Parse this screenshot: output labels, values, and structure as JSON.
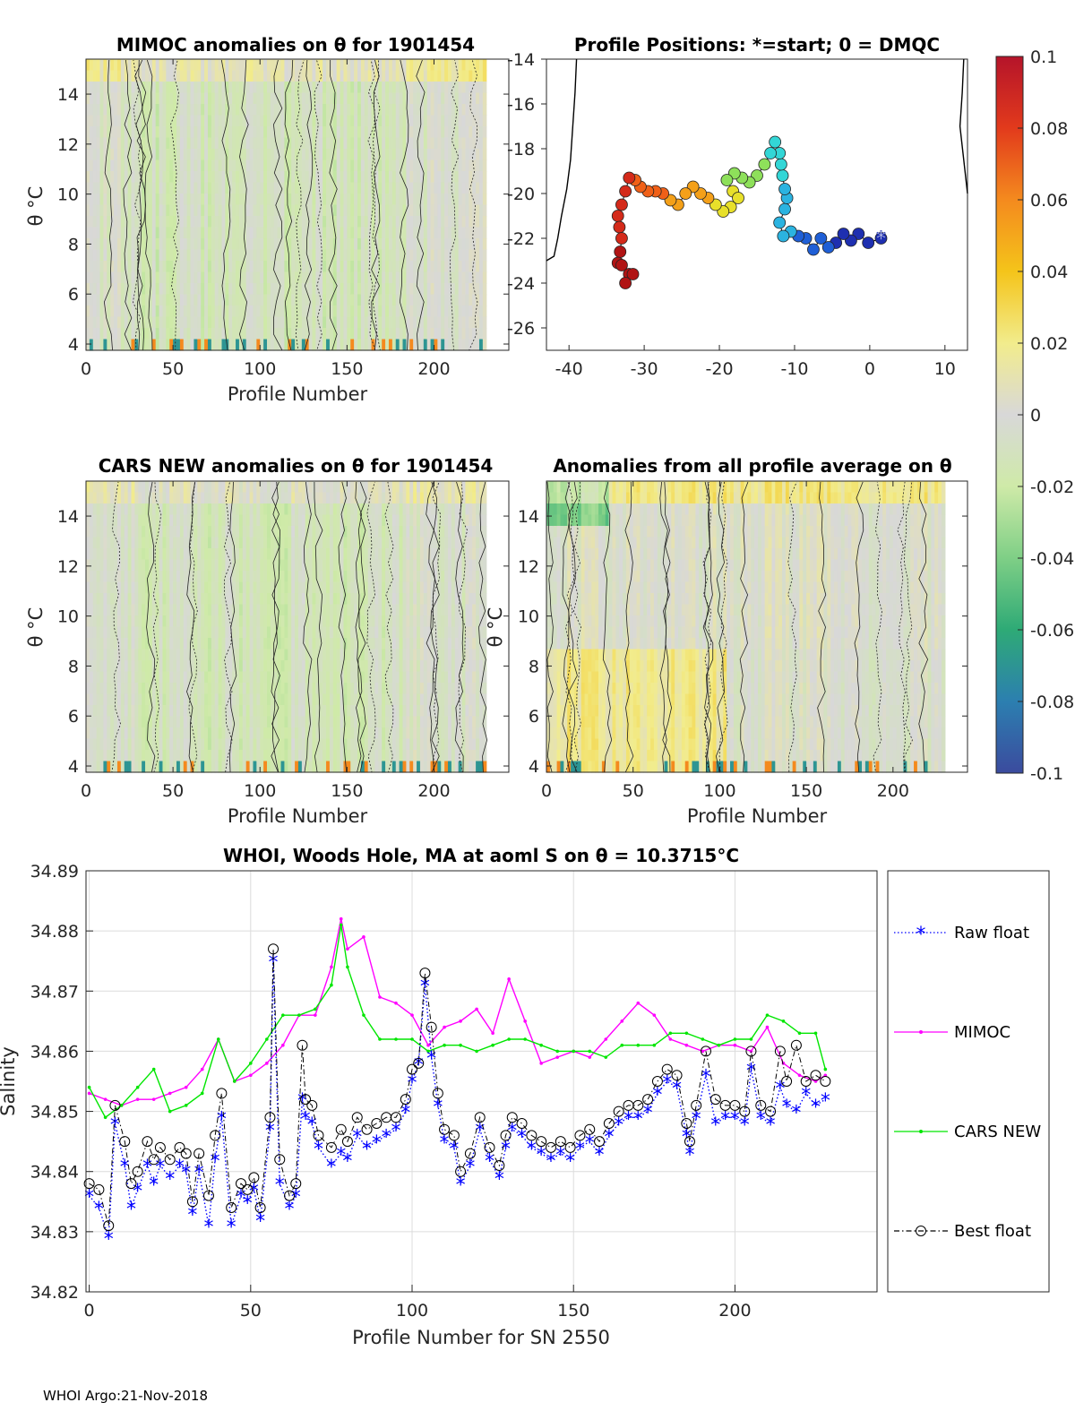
{
  "footer": "WHOI Argo:21-Nov-2018",
  "colorbar": {
    "ticks": [
      "0.1",
      "0.08",
      "0.06",
      "0.04",
      "0.02",
      "0",
      "-0.02",
      "-0.04",
      "-0.06",
      "-0.08",
      "-0.1"
    ],
    "stops": [
      "#b5142a",
      "#e23a1c",
      "#f48a1e",
      "#f4c41a",
      "#f2ec8c",
      "#d8d8d8",
      "#cfeaa8",
      "#7fcf86",
      "#2eaa76",
      "#2c7fb0",
      "#3b4b9e"
    ]
  },
  "chart_data": [
    {
      "type": "heatmap",
      "title": "MIMOC anomalies on θ  for 1901454",
      "xlabel": "Profile Number",
      "ylabel": "θ °C",
      "xticks": [
        "0",
        "50",
        "100",
        "150",
        "200"
      ],
      "yticks": [
        "4",
        "6",
        "8",
        "10",
        "12",
        "14"
      ],
      "xlim": [
        0,
        243
      ],
      "ylim": [
        3.75,
        15.4
      ],
      "anomaly_range": [
        -0.1,
        0.1
      ]
    },
    {
      "type": "scatter",
      "title": "Profile Positions: *=start; 0 = DMQC",
      "xticks": [
        "-40",
        "-30",
        "-20",
        "-10",
        "0",
        "10"
      ],
      "yticks": [
        "-14",
        "-16",
        "-18",
        "-20",
        "-22",
        "-24",
        "-26"
      ],
      "xlim": [
        -43,
        13
      ],
      "ylim": [
        -27,
        -14
      ],
      "track": [
        [
          1.5,
          -22.0
        ],
        [
          -0.2,
          -22.2
        ],
        [
          -1.5,
          -21.8
        ],
        [
          -2.5,
          -22.1
        ],
        [
          -3.5,
          -21.8
        ],
        [
          -4.5,
          -22.2
        ],
        [
          -5.5,
          -22.4
        ],
        [
          -6.5,
          -22.0
        ],
        [
          -7.5,
          -22.5
        ],
        [
          -8.5,
          -22.0
        ],
        [
          -9.5,
          -21.9
        ],
        [
          -10.5,
          -21.7
        ],
        [
          -11.5,
          -21.9
        ],
        [
          -12.0,
          -21.3
        ],
        [
          -11.3,
          -20.7
        ],
        [
          -11.0,
          -20.2
        ],
        [
          -11.3,
          -19.8
        ],
        [
          -11.6,
          -19.2
        ],
        [
          -11.8,
          -18.7
        ],
        [
          -12.0,
          -18.2
        ],
        [
          -12.6,
          -17.7
        ],
        [
          -13.2,
          -18.2
        ],
        [
          -14.0,
          -18.7
        ],
        [
          -15.0,
          -19.2
        ],
        [
          -16.0,
          -19.5
        ],
        [
          -17.0,
          -19.3
        ],
        [
          -18.0,
          -19.1
        ],
        [
          -19.0,
          -19.4
        ],
        [
          -18.2,
          -19.9
        ],
        [
          -17.5,
          -20.2
        ],
        [
          -18.5,
          -20.6
        ],
        [
          -19.5,
          -20.8
        ],
        [
          -20.5,
          -20.5
        ],
        [
          -21.5,
          -20.2
        ],
        [
          -22.5,
          -20.0
        ],
        [
          -23.5,
          -19.7
        ],
        [
          -24.5,
          -20.0
        ],
        [
          -25.5,
          -20.5
        ],
        [
          -26.5,
          -20.3
        ],
        [
          -27.5,
          -20.0
        ],
        [
          -28.5,
          -19.9
        ],
        [
          -29.5,
          -19.9
        ],
        [
          -30.5,
          -19.7
        ],
        [
          -31.2,
          -19.4
        ],
        [
          -32.0,
          -19.3
        ],
        [
          -32.5,
          -19.9
        ],
        [
          -33.0,
          -20.5
        ],
        [
          -33.5,
          -21.0
        ],
        [
          -33.3,
          -21.5
        ],
        [
          -33.0,
          -22.0
        ],
        [
          -33.2,
          -22.6
        ],
        [
          -33.5,
          -23.1
        ],
        [
          -33.0,
          -23.2
        ],
        [
          -32.0,
          -23.6
        ],
        [
          -31.5,
          -23.6
        ],
        [
          -32.5,
          -24.0
        ]
      ],
      "coast_west": [
        [
          -39.0,
          -14.0
        ],
        [
          -39.2,
          -15.5
        ],
        [
          -39.5,
          -17.0
        ],
        [
          -39.8,
          -18.5
        ],
        [
          -40.3,
          -19.8
        ],
        [
          -41.0,
          -21.0
        ],
        [
          -41.5,
          -22.0
        ],
        [
          -42.0,
          -22.8
        ],
        [
          -43.0,
          -23.0
        ]
      ],
      "coast_east": [
        [
          12.5,
          -14.0
        ],
        [
          12.3,
          -15.5
        ],
        [
          12.0,
          -17.0
        ],
        [
          12.5,
          -18.5
        ],
        [
          13.0,
          -20.0
        ]
      ]
    },
    {
      "type": "heatmap",
      "title": "CARS NEW anomalies on θ for 1901454",
      "xlabel": "Profile Number",
      "ylabel": "θ °C",
      "xticks": [
        "0",
        "50",
        "100",
        "150",
        "200"
      ],
      "yticks": [
        "4",
        "6",
        "8",
        "10",
        "12",
        "14"
      ],
      "xlim": [
        0,
        243
      ],
      "ylim": [
        3.75,
        15.4
      ],
      "anomaly_range": [
        -0.1,
        0.1
      ]
    },
    {
      "type": "heatmap",
      "title": "Anomalies from all profile average on θ",
      "xlabel": "Profile Number",
      "ylabel": "θ °C",
      "xticks": [
        "0",
        "50",
        "100",
        "150",
        "200"
      ],
      "yticks": [
        "4",
        "6",
        "8",
        "10",
        "12",
        "14"
      ],
      "xlim": [
        0,
        243
      ],
      "ylim": [
        3.75,
        15.4
      ],
      "anomaly_range": [
        -0.1,
        0.1
      ]
    },
    {
      "type": "line",
      "title": "WHOI, Woods Hole, MA at aoml S on θ = 10.3715°C",
      "xlabel": "Profile Number for SN 2550",
      "ylabel": "Salinity",
      "xticks": [
        "0",
        "50",
        "100",
        "150",
        "200"
      ],
      "yticks": [
        "34.89",
        "34.88",
        "34.87",
        "34.86",
        "34.85",
        "34.84",
        "34.83",
        "34.82"
      ],
      "xlim": [
        -1,
        244
      ],
      "ylim": [
        34.82,
        34.89
      ],
      "legend_position": "right",
      "series": [
        {
          "name": "Raw float",
          "color": "#0000ff",
          "x": [
            0,
            3,
            6,
            8,
            11,
            13,
            15,
            18,
            20,
            22,
            25,
            28,
            30,
            32,
            34,
            37,
            39,
            41,
            44,
            47,
            49,
            51,
            53,
            56,
            57,
            59,
            62,
            64,
            66,
            67,
            69,
            71,
            75,
            78,
            80,
            83,
            86,
            89,
            92,
            95,
            98,
            100,
            102,
            104,
            106,
            108,
            110,
            113,
            115,
            118,
            121,
            124,
            127,
            129,
            131,
            134,
            137,
            140,
            143,
            146,
            149,
            152,
            155,
            158,
            161,
            164,
            167,
            170,
            173,
            176,
            179,
            182,
            185,
            186,
            188,
            191,
            194,
            197,
            200,
            203,
            205,
            208,
            211,
            214,
            216,
            219,
            222,
            225,
            228
          ],
          "y": [
            34.836,
            34.834,
            34.829,
            34.848,
            34.841,
            34.834,
            34.837,
            34.841,
            34.838,
            34.841,
            34.839,
            34.841,
            34.84,
            34.833,
            34.84,
            34.831,
            34.842,
            34.849,
            34.831,
            34.836,
            34.835,
            34.837,
            34.832,
            34.847,
            34.875,
            34.838,
            34.834,
            34.836,
            34.852,
            34.849,
            34.848,
            34.844,
            34.841,
            34.843,
            34.842,
            34.846,
            34.844,
            34.845,
            34.846,
            34.847,
            34.85,
            34.855,
            34.858,
            34.871,
            34.859,
            34.851,
            34.845,
            34.844,
            34.838,
            34.841,
            34.847,
            34.842,
            34.839,
            34.844,
            34.847,
            34.846,
            34.844,
            34.843,
            34.842,
            34.843,
            34.842,
            34.844,
            34.845,
            34.843,
            34.846,
            34.848,
            34.849,
            34.849,
            34.85,
            34.853,
            34.855,
            34.854,
            34.846,
            34.843,
            34.849,
            34.856,
            34.848,
            34.849,
            34.849,
            34.848,
            34.857,
            34.849,
            34.848,
            34.854,
            34.851,
            34.85,
            34.853,
            34.851,
            34.852
          ]
        },
        {
          "name": "MIMOC",
          "color": "#ff00ff",
          "x": [
            0,
            5,
            10,
            15,
            20,
            25,
            30,
            35,
            40,
            45,
            50,
            55,
            60,
            65,
            70,
            75,
            78,
            80,
            85,
            90,
            95,
            100,
            105,
            110,
            115,
            120,
            125,
            130,
            135,
            140,
            145,
            150,
            155,
            160,
            165,
            170,
            175,
            180,
            185,
            190,
            195,
            200,
            205,
            210,
            215,
            220,
            225,
            228
          ],
          "y": [
            34.853,
            34.852,
            34.851,
            34.852,
            34.852,
            34.853,
            34.854,
            34.857,
            34.862,
            34.855,
            34.856,
            34.858,
            34.861,
            34.866,
            34.866,
            34.874,
            34.882,
            34.877,
            34.879,
            34.869,
            34.868,
            34.866,
            34.861,
            34.864,
            34.865,
            34.867,
            34.863,
            34.872,
            34.865,
            34.858,
            34.859,
            34.86,
            34.859,
            34.862,
            34.865,
            34.868,
            34.866,
            34.862,
            34.861,
            34.86,
            34.861,
            34.861,
            34.86,
            34.864,
            34.858,
            34.856,
            34.855,
            34.856
          ]
        },
        {
          "name": "CARS NEW",
          "color": "#00e600",
          "x": [
            0,
            5,
            10,
            15,
            20,
            25,
            30,
            35,
            40,
            45,
            50,
            55,
            60,
            65,
            70,
            75,
            78,
            80,
            85,
            90,
            95,
            100,
            105,
            110,
            115,
            120,
            125,
            130,
            135,
            140,
            145,
            150,
            155,
            160,
            165,
            170,
            175,
            180,
            185,
            190,
            195,
            200,
            205,
            210,
            215,
            220,
            225,
            228
          ],
          "y": [
            34.854,
            34.849,
            34.851,
            34.854,
            34.857,
            34.85,
            34.851,
            34.853,
            34.862,
            34.855,
            34.858,
            34.862,
            34.866,
            34.866,
            34.867,
            34.871,
            34.881,
            34.874,
            34.866,
            34.862,
            34.862,
            34.862,
            34.86,
            34.861,
            34.861,
            34.86,
            34.861,
            34.862,
            34.862,
            34.861,
            34.86,
            34.86,
            34.86,
            34.859,
            34.861,
            34.861,
            34.861,
            34.863,
            34.863,
            34.862,
            34.861,
            34.862,
            34.862,
            34.866,
            34.865,
            34.863,
            34.863,
            34.857
          ]
        },
        {
          "name": "Best float",
          "color": "#000000",
          "x": [
            0,
            3,
            6,
            8,
            11,
            13,
            15,
            18,
            20,
            22,
            25,
            28,
            30,
            32,
            34,
            37,
            39,
            41,
            44,
            47,
            49,
            51,
            53,
            56,
            57,
            59,
            62,
            64,
            66,
            67,
            69,
            71,
            75,
            78,
            80,
            83,
            86,
            89,
            92,
            95,
            98,
            100,
            102,
            104,
            106,
            108,
            110,
            113,
            115,
            118,
            121,
            124,
            127,
            129,
            131,
            134,
            137,
            140,
            143,
            146,
            149,
            152,
            155,
            158,
            161,
            164,
            167,
            170,
            173,
            176,
            179,
            182,
            185,
            186,
            188,
            191,
            194,
            197,
            200,
            203,
            205,
            208,
            211,
            214,
            216,
            219,
            222,
            225,
            228
          ],
          "y": [
            34.838,
            34.837,
            34.831,
            34.851,
            34.845,
            34.838,
            34.84,
            34.845,
            34.842,
            34.844,
            34.842,
            34.844,
            34.843,
            34.835,
            34.843,
            34.836,
            34.846,
            34.853,
            34.834,
            34.838,
            34.837,
            34.839,
            34.834,
            34.849,
            34.877,
            34.842,
            34.836,
            34.838,
            34.861,
            34.852,
            34.851,
            34.846,
            34.844,
            34.847,
            34.845,
            34.849,
            34.847,
            34.848,
            34.849,
            34.849,
            34.852,
            34.857,
            34.858,
            34.873,
            34.864,
            34.853,
            34.847,
            34.846,
            34.84,
            34.843,
            34.849,
            34.844,
            34.841,
            34.846,
            34.849,
            34.848,
            34.846,
            34.845,
            34.844,
            34.845,
            34.844,
            34.846,
            34.847,
            34.845,
            34.848,
            34.85,
            34.851,
            34.851,
            34.852,
            34.855,
            34.857,
            34.856,
            34.848,
            34.845,
            34.851,
            34.86,
            34.852,
            34.851,
            34.851,
            34.85,
            34.86,
            34.851,
            34.85,
            34.86,
            34.855,
            34.861,
            34.855,
            34.856,
            34.855
          ]
        }
      ]
    }
  ]
}
